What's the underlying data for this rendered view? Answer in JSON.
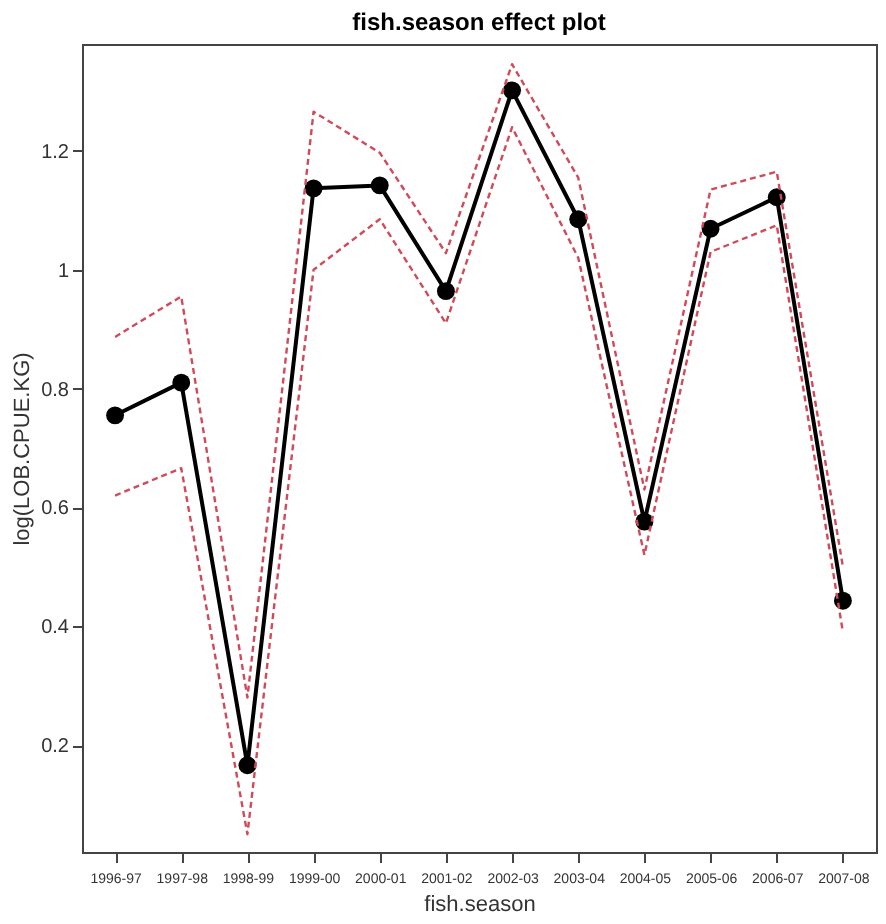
{
  "chart_data": {
    "type": "line",
    "title": "fish.season effect plot",
    "xlabel": "fish.season",
    "ylabel": "log(LOB.CPUE.KG)",
    "categories": [
      "1996-97",
      "1997-98",
      "1998-99",
      "1999-00",
      "2000-01",
      "2001-02",
      "2002-03",
      "2003-04",
      "2004-05",
      "2005-06",
      "2006-07",
      "2007-08"
    ],
    "series": [
      {
        "color": "#000000",
        "marker": "circle",
        "line_style": "solid",
        "values": [
          0.755,
          0.81,
          0.166,
          1.137,
          1.142,
          0.964,
          1.302,
          1.085,
          0.576,
          1.069,
          1.122,
          0.443
        ]
      },
      {
        "color": "#d04a5a",
        "marker": "none",
        "line_style": "dashed",
        "values": [
          0.887,
          0.955,
          0.28,
          1.266,
          1.197,
          1.028,
          1.346,
          1.155,
          0.63,
          1.135,
          1.165,
          0.5
        ]
      },
      {
        "color": "#d04a5a",
        "marker": "none",
        "line_style": "dashed",
        "values": [
          0.62,
          0.666,
          0.05,
          1.0,
          1.085,
          0.91,
          1.24,
          1.02,
          0.52,
          1.03,
          1.075,
          0.39
        ]
      }
    ],
    "ylim": [
      0.02,
      1.38
    ],
    "yticks": [
      0.2,
      0.4,
      0.6,
      0.8,
      {
        "value": 1,
        "label": "1"
      },
      1.2
    ],
    "grid": false
  }
}
